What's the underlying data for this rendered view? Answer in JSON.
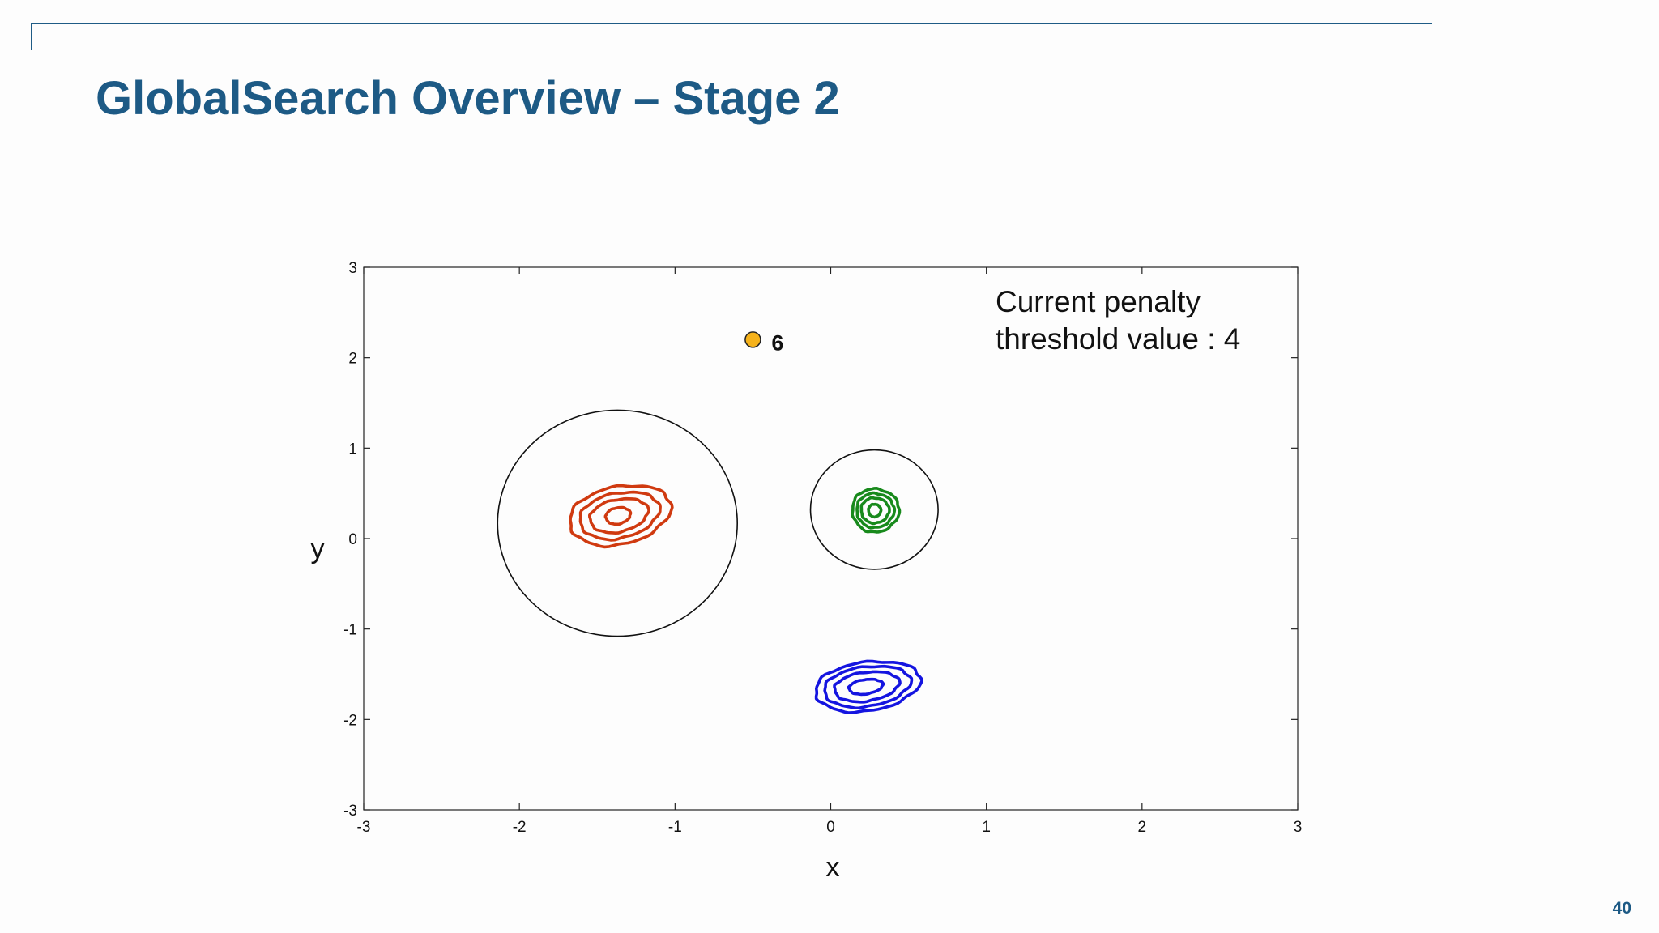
{
  "slide": {
    "title": "GlobalSearch Overview – Stage 2",
    "page_number": "40",
    "accent_color": "#1d5a85"
  },
  "chart_data": {
    "type": "scatter",
    "title": "",
    "xlabel": "x",
    "ylabel": "y",
    "xlim": [
      -3,
      3
    ],
    "ylim": [
      -3,
      3
    ],
    "xticks": [
      -3,
      -2,
      -1,
      0,
      1,
      2,
      3
    ],
    "yticks": [
      -3,
      -2,
      -1,
      0,
      1,
      2,
      3
    ],
    "grid": false,
    "annotation": {
      "lines": [
        "Current penalty",
        "threshold value : 4"
      ]
    },
    "points": [
      {
        "label": "6",
        "x": -0.5,
        "y": 2.2,
        "color": "#f5b21b"
      }
    ],
    "basin_circles": [
      {
        "cx": -1.37,
        "cy": 0.17,
        "rx": 0.77,
        "ry": 1.25
      },
      {
        "cx": 0.28,
        "cy": 0.32,
        "rx": 0.41,
        "ry": 0.66
      }
    ],
    "contour_groups": [
      {
        "color": "#d03a10",
        "cx": -1.37,
        "cy": 0.25,
        "tilt_deg": -12,
        "rings": [
          [
            0.33,
            0.32
          ],
          [
            0.26,
            0.25
          ],
          [
            0.19,
            0.18
          ],
          [
            0.08,
            0.09
          ]
        ]
      },
      {
        "color": "#188a1c",
        "cx": 0.28,
        "cy": 0.31,
        "tilt_deg": 0,
        "rings": [
          [
            0.15,
            0.24
          ],
          [
            0.12,
            0.19
          ],
          [
            0.09,
            0.14
          ],
          [
            0.04,
            0.07
          ]
        ]
      },
      {
        "color": "#1414e0",
        "cx": 0.22,
        "cy": -1.64,
        "tilt_deg": -8,
        "rings": [
          [
            0.34,
            0.27
          ],
          [
            0.28,
            0.22
          ],
          [
            0.21,
            0.16
          ],
          [
            0.11,
            0.08
          ]
        ]
      }
    ]
  }
}
